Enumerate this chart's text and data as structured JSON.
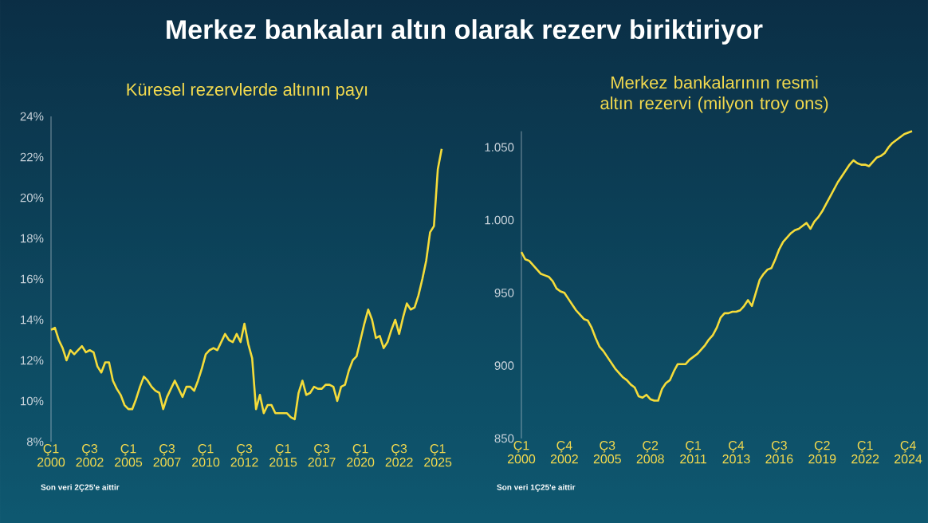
{
  "chart_data": [
    {
      "type": "line",
      "title": "Merkez bankaları altın olarak rezerv biriktiriyor",
      "subtitle": "Küresel rezervlerde altının payı",
      "categories": [
        "Ç1 2000",
        null,
        null,
        null,
        null,
        null,
        null,
        null,
        null,
        null,
        "Ç3 2002",
        null,
        null,
        null,
        null,
        null,
        null,
        null,
        null,
        null,
        "Ç1 2005",
        null,
        null,
        null,
        null,
        null,
        null,
        null,
        null,
        null,
        "Ç3 2007",
        null,
        null,
        null,
        null,
        null,
        null,
        null,
        null,
        null,
        "Ç1 2010",
        null,
        null,
        null,
        null,
        null,
        null,
        null,
        null,
        null,
        "Ç3 2012",
        null,
        null,
        null,
        null,
        null,
        null,
        null,
        null,
        null,
        "Ç1 2015",
        null,
        null,
        null,
        null,
        null,
        null,
        null,
        null,
        null,
        "Ç3 2017",
        null,
        null,
        null,
        null,
        null,
        null,
        null,
        null,
        null,
        "Ç1 2020",
        null,
        null,
        null,
        null,
        null,
        null,
        null,
        null,
        null,
        "Ç3 2022",
        null,
        null,
        null,
        null,
        null,
        null,
        null,
        null,
        null,
        "Ç1 2025",
        null
      ],
      "series": [
        {
          "color": "#f5dc3a",
          "values": [
            13.5,
            13.6,
            13.0,
            12.6,
            12.0,
            12.5,
            12.3,
            12.5,
            12.7,
            12.4,
            12.5,
            12.4,
            11.7,
            11.4,
            11.9,
            11.9,
            11.0,
            10.6,
            10.3,
            9.8,
            9.6,
            9.6,
            10.1,
            10.7,
            11.2,
            11.0,
            10.7,
            10.5,
            10.4,
            9.6,
            10.2,
            10.6,
            11.0,
            10.6,
            10.2,
            10.7,
            10.7,
            10.5,
            11.0,
            11.6,
            12.3,
            12.5,
            12.6,
            12.5,
            12.9,
            13.3,
            13.0,
            12.9,
            13.3,
            12.9,
            13.8,
            12.8,
            12.1,
            9.6,
            10.3,
            9.4,
            9.8,
            9.8,
            9.4,
            9.4,
            9.4,
            9.4,
            9.2,
            9.1,
            10.4,
            11.0,
            10.3,
            10.4,
            10.7,
            10.6,
            10.6,
            10.8,
            10.8,
            10.7,
            10.0,
            10.7,
            10.8,
            11.5,
            12.0,
            12.2,
            13.0,
            13.8,
            14.5,
            14.0,
            13.1,
            13.2,
            12.6,
            12.9,
            13.5,
            14.0,
            13.3,
            14.1,
            14.8,
            14.5,
            14.6,
            15.2,
            16.0,
            16.9,
            18.3,
            18.6,
            21.4,
            22.4
          ]
        }
      ],
      "ylim": [
        8,
        24
      ],
      "yticks": [
        {
          "value": 8,
          "label": "8%"
        },
        {
          "value": 10,
          "label": "10%"
        },
        {
          "value": 12,
          "label": "12%"
        },
        {
          "value": 14,
          "label": "14%"
        },
        {
          "value": 16,
          "label": "16%"
        },
        {
          "value": 18,
          "label": "18%"
        },
        {
          "value": 20,
          "label": "20%"
        },
        {
          "value": 22,
          "label": "22%"
        },
        {
          "value": 24,
          "label": "24%"
        }
      ],
      "annotations": [
        "Son veri 2Ç25'e aittir"
      ]
    },
    {
      "type": "line",
      "title": "Merkez bankalarının resmi altın rezervi (milyon troy ons)",
      "categories": [
        "Ç1 2000",
        null,
        null,
        null,
        null,
        null,
        null,
        null,
        null,
        null,
        null,
        "Ç4 2002",
        null,
        null,
        null,
        null,
        null,
        null,
        null,
        null,
        null,
        null,
        "Ç3 2005",
        null,
        null,
        null,
        null,
        null,
        null,
        null,
        null,
        null,
        null,
        "Ç2 2008",
        null,
        null,
        null,
        null,
        null,
        null,
        null,
        null,
        null,
        null,
        "Ç1 2011",
        null,
        null,
        null,
        null,
        null,
        null,
        null,
        null,
        null,
        null,
        "Ç4 2013",
        null,
        null,
        null,
        null,
        null,
        null,
        null,
        null,
        null,
        null,
        "Ç3 2016",
        null,
        null,
        null,
        null,
        null,
        null,
        null,
        null,
        null,
        null,
        "Ç2 2019",
        null,
        null,
        null,
        null,
        null,
        null,
        null,
        null,
        null,
        null,
        "Ç1 2022",
        null,
        null,
        null,
        null,
        null,
        null,
        null,
        null,
        null,
        null,
        "Ç4 2024",
        null
      ],
      "series": [
        {
          "color": "#f5dc3a",
          "values": [
            978,
            973,
            972,
            969,
            966,
            963,
            962,
            961,
            958,
            953,
            951,
            950,
            946,
            942,
            938,
            935,
            932,
            931,
            926,
            919,
            913,
            910,
            906,
            902,
            898,
            895,
            892,
            890,
            887,
            885,
            879,
            878,
            880,
            877,
            876,
            876,
            884,
            888,
            890,
            896,
            901,
            901,
            901,
            904,
            906,
            908,
            911,
            914,
            918,
            921,
            926,
            933,
            936,
            936,
            937,
            937,
            938,
            941,
            945,
            941,
            950,
            959,
            963,
            966,
            967,
            973,
            980,
            985,
            988,
            991,
            993,
            994,
            996,
            998,
            994,
            999,
            1002,
            1006,
            1011,
            1016,
            1021,
            1026,
            1030,
            1034,
            1038,
            1041,
            1039,
            1038,
            1038,
            1037,
            1040,
            1043,
            1044,
            1046,
            1050,
            1053,
            1055,
            1057,
            1059,
            1060,
            1061
          ]
        }
      ],
      "ylim": [
        850,
        1061
      ],
      "yticks": [
        {
          "value": 850,
          "label": "850"
        },
        {
          "value": 900,
          "label": "900"
        },
        {
          "value": 950,
          "label": "950"
        },
        {
          "value": 1000,
          "label": "1.000"
        },
        {
          "value": 1050,
          "label": "1.050"
        }
      ],
      "annotations": [
        "Son veri 1Ç25'e aittir"
      ]
    }
  ]
}
